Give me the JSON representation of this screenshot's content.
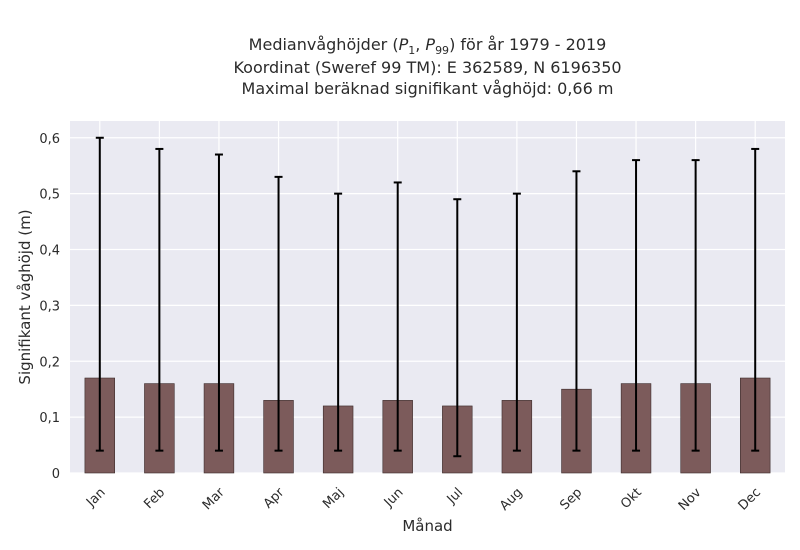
{
  "chart_data": {
    "type": "bar",
    "title_lines": [
      "Medianvåghöjder (P1, P99) för år 1979 - 2019",
      "Koordinat (Sweref 99 TM): E 362589, N 6196350",
      "Maximal beräknad signifikant våghöjd: 0,66 m"
    ],
    "xlabel": "Månad",
    "ylabel": "Signifikant våghöjd (m)",
    "categories": [
      "Jan",
      "Feb",
      "Mar",
      "Apr",
      "Maj",
      "Jun",
      "Jul",
      "Aug",
      "Sep",
      "Okt",
      "Nov",
      "Dec"
    ],
    "values": [
      0.17,
      0.16,
      0.16,
      0.13,
      0.12,
      0.13,
      0.12,
      0.13,
      0.15,
      0.16,
      0.16,
      0.17
    ],
    "error_low": [
      0.04,
      0.04,
      0.04,
      0.04,
      0.04,
      0.04,
      0.03,
      0.04,
      0.04,
      0.04,
      0.04,
      0.04
    ],
    "error_high": [
      0.6,
      0.58,
      0.57,
      0.53,
      0.5,
      0.52,
      0.49,
      0.5,
      0.54,
      0.56,
      0.56,
      0.58
    ],
    "ylim": [
      0,
      0.63
    ],
    "yticks": [
      0,
      0.1,
      0.2,
      0.3,
      0.4,
      0.5,
      0.6
    ],
    "ytick_labels": [
      "0",
      "0,1",
      "0,2",
      "0,3",
      "0,4",
      "0,5",
      "0,6"
    ],
    "grid": true,
    "colors": {
      "bar": "#7c5b5b",
      "bar_edge": "#3a2a2a",
      "error": "#000000",
      "background": "#eaeaf2",
      "grid": "#ffffff"
    }
  }
}
